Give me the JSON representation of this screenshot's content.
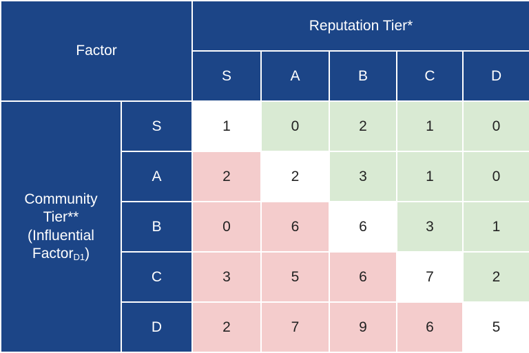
{
  "header": {
    "factor": "Factor",
    "reputation_tier": "Reputation Tier*",
    "columns": [
      "S",
      "A",
      "B",
      "C",
      "D"
    ]
  },
  "row_group": {
    "line1": "Community",
    "line2": "Tier**",
    "line3": "(Influential",
    "line4_main": "Factor",
    "line4_sub": "D1",
    "line4_end": ")"
  },
  "rows": [
    {
      "label": "S",
      "values": [
        "1",
        "0",
        "2",
        "1",
        "0"
      ]
    },
    {
      "label": "A",
      "values": [
        "2",
        "2",
        "3",
        "1",
        "0"
      ]
    },
    {
      "label": "B",
      "values": [
        "0",
        "6",
        "6",
        "3",
        "1"
      ]
    },
    {
      "label": "C",
      "values": [
        "3",
        "5",
        "6",
        "7",
        "2"
      ]
    },
    {
      "label": "D",
      "values": [
        "2",
        "7",
        "9",
        "6",
        "5"
      ]
    }
  ],
  "colors": {
    "header": "#1c4587",
    "diagonal": "#ffffff",
    "above_diagonal": "#d9ead3",
    "below_diagonal": "#f4cccc"
  }
}
